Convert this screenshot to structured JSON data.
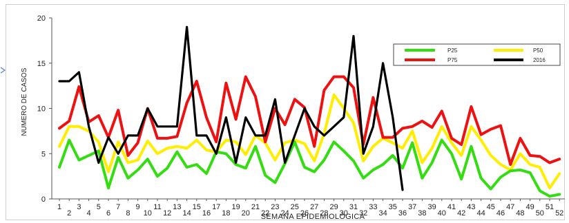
{
  "chart_data": {
    "type": "line",
    "title": "",
    "xlabel": "SEMANA EPIDEMIOLÓGICA",
    "ylabel": "NUMERO DE CASOS",
    "ylim": [
      0,
      20
    ],
    "yticks": [
      0,
      5,
      10,
      15,
      20
    ],
    "xlim": [
      1,
      52
    ],
    "xtick_labels": [
      "1",
      "3",
      "5",
      "7",
      "9",
      "11",
      "13",
      "15",
      "17",
      "19",
      "21",
      "23",
      "25",
      "27",
      "29",
      "31",
      "33",
      "35",
      "37",
      "39",
      "41",
      "43",
      "45",
      "47",
      "49",
      "51"
    ],
    "xtick_labels_sub": [
      "2",
      "4",
      "6",
      "8",
      "10",
      "12",
      "14",
      "16",
      "18",
      "20",
      "22",
      "24",
      "26",
      "28",
      "30",
      "32",
      "34",
      "36",
      "38",
      "40",
      "42",
      "44",
      "46",
      "48",
      "50",
      "52"
    ],
    "grid": false,
    "legend_position": "top-right",
    "colors": {
      "p25": "#33dd11",
      "p50": "#ffee00",
      "p75": "#ee1111",
      "y2016": "#000000"
    },
    "series": [
      {
        "name": "P25",
        "values": [
          3.5,
          6.5,
          4.3,
          4.8,
          5.3,
          1.2,
          4.6,
          2.3,
          3.2,
          4.4,
          2.5,
          3.4,
          5.2,
          3.5,
          3.8,
          2.8,
          5.2,
          5.0,
          3.8,
          3.4,
          5.8,
          2.6,
          1.8,
          3.9,
          6.3,
          3.5,
          3.0,
          4.3,
          6.3,
          5.3,
          4.2,
          2.3,
          3.2,
          3.8,
          4.8,
          3.4,
          6.2,
          2.3,
          4.0,
          6.5,
          5.0,
          2.2,
          5.8,
          2.3,
          1.1,
          2.4,
          3.1,
          3.2,
          2.9,
          0.9,
          0.3,
          0.5
        ]
      },
      {
        "name": "P50",
        "values": [
          5.8,
          8.0,
          8.0,
          7.5,
          6.3,
          3.0,
          6.3,
          4.0,
          4.3,
          6.4,
          5.0,
          5.6,
          5.8,
          5.6,
          6.5,
          5.4,
          5.2,
          6.5,
          6.3,
          4.9,
          7.0,
          6.2,
          4.3,
          6.2,
          6.5,
          6.1,
          4.2,
          7.2,
          11.5,
          10.0,
          8.4,
          4.2,
          5.8,
          6.7,
          6.2,
          5.6,
          7.5,
          4.0,
          5.6,
          8.0,
          6.2,
          4.8,
          8.0,
          6.5,
          4.8,
          3.8,
          3.2,
          5.0,
          3.8,
          3.5,
          1.2,
          2.8
        ]
      },
      {
        "name": "P75",
        "values": [
          7.8,
          8.6,
          12.4,
          8.5,
          9.2,
          6.8,
          9.8,
          4.8,
          6.2,
          10.0,
          6.7,
          6.7,
          6.9,
          10.6,
          13.0,
          9.0,
          6.3,
          12.8,
          8.8,
          13.5,
          11.3,
          6.3,
          10.0,
          8.2,
          11.0,
          10.1,
          5.8,
          12.0,
          13.5,
          13.5,
          12.3,
          6.0,
          11.2,
          6.8,
          6.8,
          7.8,
          8.0,
          8.6,
          7.9,
          9.7,
          6.7,
          6.0,
          10.2,
          7.1,
          7.7,
          8.1,
          3.8,
          6.7,
          4.8,
          4.7,
          4.0,
          4.4
        ]
      },
      {
        "name": "2016",
        "values": [
          13.0,
          13.0,
          14.0,
          8.0,
          4.0,
          6.8,
          5.0,
          7.0,
          7.0,
          10.0,
          8.0,
          8.0,
          8.0,
          19.0,
          7.0,
          7.0,
          5.0,
          9.0,
          4.0,
          9.0,
          7.0,
          7.0,
          11.0,
          4.0,
          7.0,
          10.0,
          8.0,
          7.0,
          8.0,
          9.0,
          18.0,
          5.0,
          8.0,
          15.0,
          9.0,
          1.0
        ]
      }
    ]
  }
}
